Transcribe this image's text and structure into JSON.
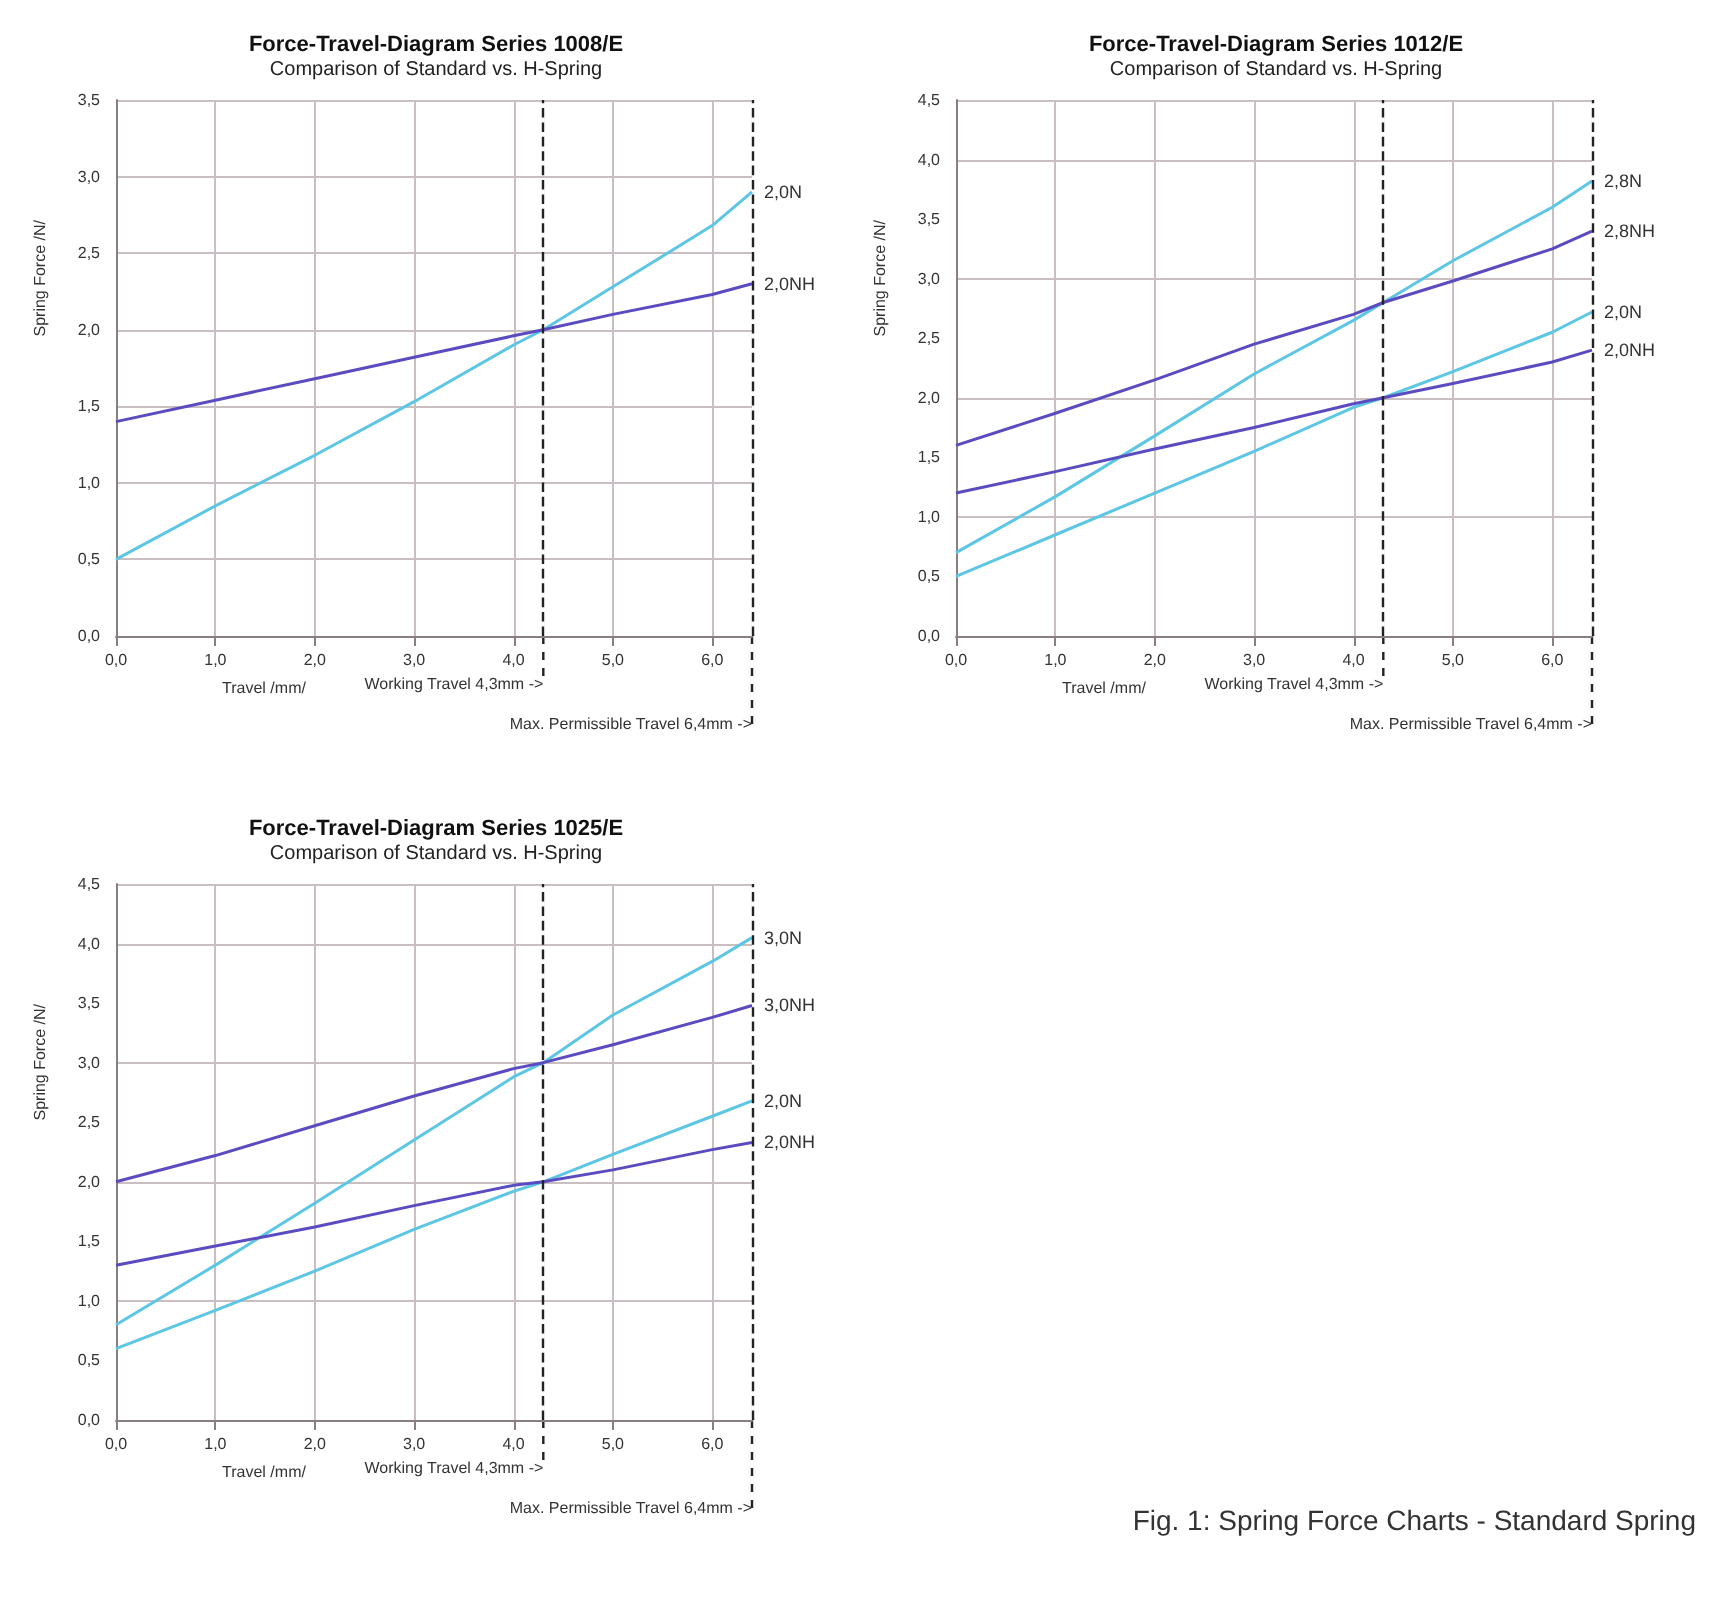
{
  "chart_data": [
    {
      "type": "line",
      "title": "Force-Travel-Diagram Series 1008/E",
      "subtitle": "Comparison of Standard vs. H-Spring",
      "xlabel": "Travel /mm/",
      "ylabel": "Spring Force /N/",
      "x": [
        0,
        1,
        2,
        3,
        4,
        4.3,
        5,
        6,
        6.4
      ],
      "series": [
        {
          "name": "2,0N",
          "color": "#5cc6e4",
          "values": [
            0.5,
            0.85,
            1.18,
            1.53,
            1.9,
            2.0,
            2.28,
            2.68,
            2.9
          ]
        },
        {
          "name": "2,0NH",
          "color": "#5a4cc0",
          "values": [
            1.4,
            1.54,
            1.68,
            1.82,
            1.96,
            2.0,
            2.1,
            2.23,
            2.3
          ]
        }
      ],
      "xlim": [
        0,
        6.4
      ],
      "xticks": [
        {
          "value": 0,
          "label": "0,0"
        },
        {
          "value": 1,
          "label": "1,0"
        },
        {
          "value": 2,
          "label": "2,0"
        },
        {
          "value": 3,
          "label": "3,0"
        },
        {
          "value": 4,
          "label": "4,0"
        },
        {
          "value": 5,
          "label": "5,0"
        },
        {
          "value": 6,
          "label": "6,0"
        }
      ],
      "ylim": [
        0,
        3.5
      ],
      "yticks": [
        {
          "value": 0,
          "label": "0,0"
        },
        {
          "value": 0.5,
          "label": "0,5"
        },
        {
          "value": 1,
          "label": "1,0"
        },
        {
          "value": 1.5,
          "label": "1,5"
        },
        {
          "value": 2,
          "label": "2,0"
        },
        {
          "value": 2.5,
          "label": "2,5"
        },
        {
          "value": 3,
          "label": "3,0"
        },
        {
          "value": 3.5,
          "label": "3,5"
        }
      ],
      "ref_lines": [
        {
          "axis": "x",
          "value": 4.3,
          "label": "Working Travel 4,3mm ->",
          "line_style": "dashed",
          "color": "#222222"
        },
        {
          "axis": "x",
          "value": 6.4,
          "label": "Max. Permissible Travel 6,4mm ->",
          "line_style": "dashed",
          "color": "#222222"
        }
      ],
      "grid": true,
      "legend": false,
      "marker": "none",
      "line_style": "solid"
    },
    {
      "type": "line",
      "title": "Force-Travel-Diagram Series 1012/E",
      "subtitle": "Comparison of Standard vs. H-Spring",
      "xlabel": "Travel /mm/",
      "ylabel": "Spring Force /N/",
      "x": [
        0,
        1,
        2,
        3,
        4,
        4.3,
        5,
        6,
        6.4
      ],
      "series": [
        {
          "name": "2,8N",
          "color": "#5cc6e4",
          "values": [
            0.7,
            1.17,
            1.68,
            2.2,
            2.65,
            2.8,
            3.15,
            3.6,
            3.82
          ]
        },
        {
          "name": "2,8NH",
          "color": "#5a4cc0",
          "values": [
            1.6,
            1.87,
            2.15,
            2.45,
            2.7,
            2.8,
            2.98,
            3.25,
            3.4
          ]
        },
        {
          "name": "2,0N",
          "color": "#5cc6e4",
          "values": [
            0.5,
            0.85,
            1.2,
            1.55,
            1.92,
            2.0,
            2.22,
            2.55,
            2.72
          ]
        },
        {
          "name": "2,0NH",
          "color": "#5a4cc0",
          "values": [
            1.2,
            1.38,
            1.57,
            1.75,
            1.95,
            2.0,
            2.12,
            2.3,
            2.4
          ]
        }
      ],
      "xlim": [
        0,
        6.4
      ],
      "xticks": [
        {
          "value": 0,
          "label": "0,0"
        },
        {
          "value": 1,
          "label": "1,0"
        },
        {
          "value": 2,
          "label": "2,0"
        },
        {
          "value": 3,
          "label": "3,0"
        },
        {
          "value": 4,
          "label": "4,0"
        },
        {
          "value": 5,
          "label": "5,0"
        },
        {
          "value": 6,
          "label": "6,0"
        }
      ],
      "ylim": [
        0,
        4.5
      ],
      "yticks": [
        {
          "value": 0,
          "label": "0,0"
        },
        {
          "value": 0.5,
          "label": "0,5"
        },
        {
          "value": 1,
          "label": "1,0"
        },
        {
          "value": 1.5,
          "label": "1,5"
        },
        {
          "value": 2,
          "label": "2,0"
        },
        {
          "value": 2.5,
          "label": "2,5"
        },
        {
          "value": 3,
          "label": "3,0"
        },
        {
          "value": 3.5,
          "label": "3,5"
        },
        {
          "value": 4,
          "label": "4,0"
        },
        {
          "value": 4.5,
          "label": "4,5"
        }
      ],
      "ref_lines": [
        {
          "axis": "x",
          "value": 4.3,
          "label": "Working Travel 4,3mm ->",
          "line_style": "dashed",
          "color": "#222222"
        },
        {
          "axis": "x",
          "value": 6.4,
          "label": "Max. Permissible Travel 6,4mm ->",
          "line_style": "dashed",
          "color": "#222222"
        }
      ],
      "grid": true,
      "legend": false,
      "marker": "none",
      "line_style": "solid"
    },
    {
      "type": "line",
      "title": "Force-Travel-Diagram Series 1025/E",
      "subtitle": "Comparison of Standard vs. H-Spring",
      "xlabel": "Travel /mm/",
      "ylabel": "Spring Force /N/",
      "x": [
        0,
        1,
        2,
        3,
        4,
        4.3,
        5,
        6,
        6.4
      ],
      "series": [
        {
          "name": "3,0N",
          "color": "#5cc6e4",
          "values": [
            0.8,
            1.3,
            1.82,
            2.35,
            2.88,
            3.0,
            3.4,
            3.85,
            4.05
          ]
        },
        {
          "name": "3,0NH",
          "color": "#5a4cc0",
          "values": [
            2.0,
            2.22,
            2.47,
            2.72,
            2.95,
            3.0,
            3.15,
            3.38,
            3.48
          ]
        },
        {
          "name": "2,0N",
          "color": "#5cc6e4",
          "values": [
            0.6,
            0.92,
            1.25,
            1.6,
            1.92,
            2.0,
            2.23,
            2.55,
            2.68
          ]
        },
        {
          "name": "2,0NH",
          "color": "#5a4cc0",
          "values": [
            1.3,
            1.46,
            1.62,
            1.8,
            1.97,
            2.0,
            2.1,
            2.27,
            2.33
          ]
        }
      ],
      "xlim": [
        0,
        6.4
      ],
      "xticks": [
        {
          "value": 0,
          "label": "0,0"
        },
        {
          "value": 1,
          "label": "1,0"
        },
        {
          "value": 2,
          "label": "2,0"
        },
        {
          "value": 3,
          "label": "3,0"
        },
        {
          "value": 4,
          "label": "4,0"
        },
        {
          "value": 5,
          "label": "5,0"
        },
        {
          "value": 6,
          "label": "6,0"
        }
      ],
      "ylim": [
        0,
        4.5
      ],
      "yticks": [
        {
          "value": 0,
          "label": "0,0"
        },
        {
          "value": 0.5,
          "label": "0,5"
        },
        {
          "value": 1,
          "label": "1,0"
        },
        {
          "value": 1.5,
          "label": "1,5"
        },
        {
          "value": 2,
          "label": "2,0"
        },
        {
          "value": 2.5,
          "label": "2,5"
        },
        {
          "value": 3,
          "label": "3,0"
        },
        {
          "value": 3.5,
          "label": "3,5"
        },
        {
          "value": 4,
          "label": "4,0"
        },
        {
          "value": 4.5,
          "label": "4,5"
        }
      ],
      "ref_lines": [
        {
          "axis": "x",
          "value": 4.3,
          "label": "Working Travel 4,3mm ->",
          "line_style": "dashed",
          "color": "#222222"
        },
        {
          "axis": "x",
          "value": 6.4,
          "label": "Max. Permissible Travel 6,4mm ->",
          "line_style": "dashed",
          "color": "#222222"
        }
      ],
      "annotations": [
        "Fig. 1: Spring Force Charts - Standard Spring"
      ],
      "grid": true,
      "legend": false,
      "marker": "none",
      "line_style": "solid"
    }
  ]
}
